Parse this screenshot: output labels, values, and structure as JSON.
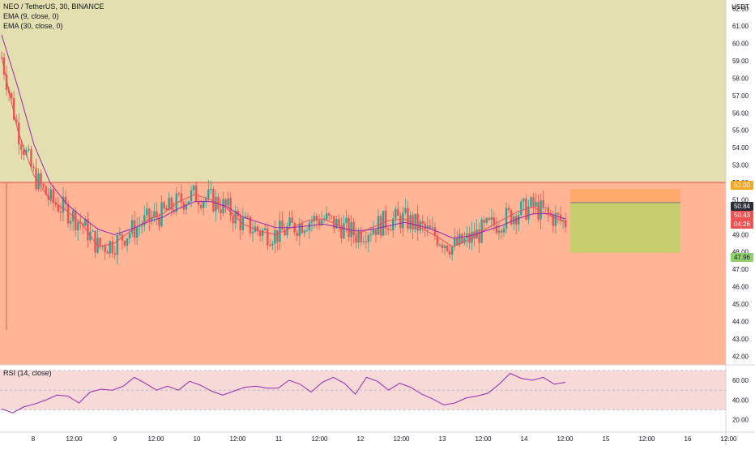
{
  "legend": {
    "symbol": "NEO / TetherUS, 30, BINANCE",
    "ema1": "EMA (9, close, 0)",
    "ema2": "EMA (30, close, 0)"
  },
  "rsi_legend": "RSI (14, close)",
  "price_axis": {
    "currency": "USDT",
    "ticks": [
      "62.00",
      "61.00",
      "60.00",
      "59.00",
      "58.00",
      "57.00",
      "56.00",
      "55.00",
      "54.00",
      "53.00",
      "52.00",
      "51.00",
      "50.00",
      "49.00",
      "48.00",
      "47.00",
      "46.00",
      "45.00",
      "44.00",
      "43.00",
      "42.00"
    ],
    "badges": {
      "resistance": "52.00",
      "target": "50.84",
      "last_price": "50.43",
      "countdown": "04:26",
      "stop": "47.96"
    }
  },
  "rsi_axis": {
    "ticks": [
      "60.00",
      "40.00",
      "20.00"
    ]
  },
  "time_axis": [
    "8",
    "12:00",
    "9",
    "12:00",
    "10",
    "12:00",
    "11",
    "12:00",
    "12",
    "12:00",
    "13",
    "12:00",
    "14",
    "12:00",
    "15",
    "12:00",
    "16",
    "12:00"
  ],
  "colors": {
    "upper_zone": "#e3dfb0",
    "lower_zone": "#ffb596",
    "resistance_line": "#e0493a",
    "candle_up": "#26a69a",
    "candle_down": "#ef5350",
    "ema_fast": "#e05260",
    "ema_slow": "#9c27b0",
    "rsi_line": "#9c27b0",
    "rsi_band": "#f3c9c7",
    "target_zone": "#ffa868",
    "stop_zone": "#c5cd6c",
    "badge_resistance": "#f5a623",
    "badge_target": "#2a2e39",
    "badge_price": "#ef5350",
    "badge_stop": "#8fd16b"
  },
  "chart_data": {
    "type": "line",
    "title": "NEO / TetherUS, 30, BINANCE",
    "ylim": [
      41.5,
      62.5
    ],
    "resistance_level": 52.0,
    "last_price": 50.43,
    "target_level": 50.84,
    "stop_level": 47.96,
    "series": [
      {
        "name": "EMA (9, close, 0)",
        "values": [
          59.2,
          55.0,
          52.4,
          51.0,
          50.4,
          49.6,
          48.3,
          48.5,
          49.2,
          49.8,
          50.2,
          50.9,
          51.3,
          51.0,
          50.5,
          49.6,
          49.2,
          49.0,
          49.4,
          49.8,
          49.9,
          49.5,
          49.0,
          49.4,
          49.8,
          49.9,
          49.4,
          48.9,
          48.3,
          48.7,
          49.3,
          49.8,
          50.3,
          50.6,
          50.1,
          49.7
        ]
      },
      {
        "name": "EMA (30, close, 0)",
        "values": [
          60.5,
          57.5,
          54.2,
          52.0,
          50.8,
          50.0,
          49.3,
          49.0,
          49.3,
          49.7,
          50.0,
          50.5,
          50.9,
          50.9,
          50.6,
          50.0,
          49.7,
          49.4,
          49.4,
          49.5,
          49.6,
          49.4,
          49.2,
          49.3,
          49.5,
          49.7,
          49.5,
          49.2,
          48.8,
          48.9,
          49.2,
          49.5,
          49.9,
          50.2,
          50.2,
          49.9
        ]
      }
    ],
    "rsi": {
      "name": "RSI (14, close)",
      "ylim": [
        14,
        74
      ],
      "band": [
        30,
        70
      ],
      "values": [
        31,
        27,
        33,
        36,
        40,
        45,
        44,
        37,
        48,
        51,
        50,
        54,
        63,
        57,
        50,
        54,
        50,
        59,
        55,
        49,
        45,
        49,
        53,
        54,
        52,
        52,
        60,
        56,
        48,
        58,
        63,
        57,
        46,
        63,
        59,
        50,
        57,
        53,
        46,
        41,
        35,
        37,
        42,
        44,
        47,
        56,
        67,
        62,
        60,
        63,
        56,
        58
      ]
    }
  }
}
